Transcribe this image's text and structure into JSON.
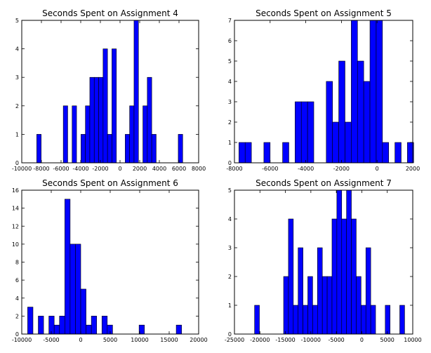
{
  "colors": {
    "bar_fill": "#0000ff",
    "bar_edge": "#000000",
    "axes": "#000000",
    "background": "#ffffff"
  },
  "chart_data": [
    {
      "type": "bar",
      "title": "Seconds Spent on Assignment 4",
      "xlim": [
        -10000,
        8000
      ],
      "ylim": [
        0,
        5
      ],
      "xticks": [
        "-10000",
        "-8000",
        "-6000",
        "-4000",
        "-2000",
        "0",
        "2000",
        "4000",
        "6000",
        "8000"
      ],
      "yticks": [
        "0",
        "1",
        "2",
        "3",
        "4",
        "5"
      ],
      "bin_width": 450,
      "bins": [
        {
          "x": -8475,
          "count": 1
        },
        {
          "x": -5775,
          "count": 2
        },
        {
          "x": -4875,
          "count": 2
        },
        {
          "x": -3975,
          "count": 1
        },
        {
          "x": -3525,
          "count": 2
        },
        {
          "x": -3075,
          "count": 3
        },
        {
          "x": -2625,
          "count": 3
        },
        {
          "x": -2175,
          "count": 3
        },
        {
          "x": -1725,
          "count": 4
        },
        {
          "x": -1275,
          "count": 1
        },
        {
          "x": -825,
          "count": 4
        },
        {
          "x": 525,
          "count": 1
        },
        {
          "x": 975,
          "count": 2
        },
        {
          "x": 1425,
          "count": 5
        },
        {
          "x": 2325,
          "count": 2
        },
        {
          "x": 2775,
          "count": 3
        },
        {
          "x": 3225,
          "count": 1
        },
        {
          "x": 5925,
          "count": 1
        }
      ]
    },
    {
      "type": "bar",
      "title": "Seconds Spent on Assignment 5",
      "xlim": [
        -8000,
        2000
      ],
      "ylim": [
        0,
        7
      ],
      "xticks": [
        "-8000",
        "-6000",
        "-4000",
        "-2000",
        "0",
        "2000"
      ],
      "yticks": [
        "0",
        "1",
        "2",
        "3",
        "4",
        "5",
        "6",
        "7"
      ],
      "bin_width": 350,
      "bins": [
        {
          "x": -7750,
          "count": 1
        },
        {
          "x": -7400,
          "count": 1
        },
        {
          "x": -6350,
          "count": 1
        },
        {
          "x": -5300,
          "count": 1
        },
        {
          "x": -4600,
          "count": 3
        },
        {
          "x": -4250,
          "count": 3
        },
        {
          "x": -3900,
          "count": 3
        },
        {
          "x": -2850,
          "count": 4
        },
        {
          "x": -2500,
          "count": 2
        },
        {
          "x": -2150,
          "count": 5
        },
        {
          "x": -1800,
          "count": 2
        },
        {
          "x": -1450,
          "count": 7
        },
        {
          "x": -1100,
          "count": 5
        },
        {
          "x": -750,
          "count": 4
        },
        {
          "x": -400,
          "count": 7
        },
        {
          "x": -50,
          "count": 7
        },
        {
          "x": 300,
          "count": 1
        },
        {
          "x": 1000,
          "count": 1
        },
        {
          "x": 1700,
          "count": 1
        }
      ]
    },
    {
      "type": "bar",
      "title": "Seconds Spent on Assignment 6",
      "xlim": [
        -10000,
        20000
      ],
      "ylim": [
        0,
        16
      ],
      "xticks": [
        "-10000",
        "-5000",
        "0",
        "5000",
        "10000",
        "15000",
        "20000"
      ],
      "yticks": [
        "0",
        "2",
        "4",
        "6",
        "8",
        "10",
        "12",
        "14",
        "16"
      ],
      "bin_width": 900,
      "bins": [
        {
          "x": -9000,
          "count": 3
        },
        {
          "x": -7200,
          "count": 2
        },
        {
          "x": -5400,
          "count": 2
        },
        {
          "x": -4500,
          "count": 1
        },
        {
          "x": -3600,
          "count": 2
        },
        {
          "x": -2700,
          "count": 15
        },
        {
          "x": -1800,
          "count": 10
        },
        {
          "x": -900,
          "count": 10
        },
        {
          "x": 0,
          "count": 5
        },
        {
          "x": 900,
          "count": 1
        },
        {
          "x": 1800,
          "count": 2
        },
        {
          "x": 3600,
          "count": 2
        },
        {
          "x": 4500,
          "count": 1
        },
        {
          "x": 9900,
          "count": 1
        },
        {
          "x": 16200,
          "count": 1
        }
      ]
    },
    {
      "type": "bar",
      "title": "Seconds Spent on Assignment 7",
      "xlim": [
        -25000,
        10000
      ],
      "ylim": [
        0,
        5
      ],
      "xticks": [
        "-25000",
        "-20000",
        "-15000",
        "-10000",
        "-5000",
        "0",
        "5000",
        "10000"
      ],
      "yticks": [
        "0",
        "1",
        "2",
        "3",
        "4",
        "5"
      ],
      "bin_width": 950,
      "bins": [
        {
          "x": -21050,
          "count": 1
        },
        {
          "x": -15350,
          "count": 2
        },
        {
          "x": -14400,
          "count": 4
        },
        {
          "x": -13450,
          "count": 1
        },
        {
          "x": -12500,
          "count": 3
        },
        {
          "x": -11550,
          "count": 1
        },
        {
          "x": -10600,
          "count": 2
        },
        {
          "x": -9650,
          "count": 1
        },
        {
          "x": -8700,
          "count": 3
        },
        {
          "x": -7750,
          "count": 2
        },
        {
          "x": -6800,
          "count": 2
        },
        {
          "x": -5850,
          "count": 4
        },
        {
          "x": -4900,
          "count": 5
        },
        {
          "x": -3950,
          "count": 4
        },
        {
          "x": -3000,
          "count": 5
        },
        {
          "x": -2050,
          "count": 4
        },
        {
          "x": -1100,
          "count": 2
        },
        {
          "x": -150,
          "count": 1
        },
        {
          "x": 800,
          "count": 3
        },
        {
          "x": 1750,
          "count": 1
        },
        {
          "x": 4600,
          "count": 1
        },
        {
          "x": 7450,
          "count": 1
        }
      ]
    }
  ]
}
